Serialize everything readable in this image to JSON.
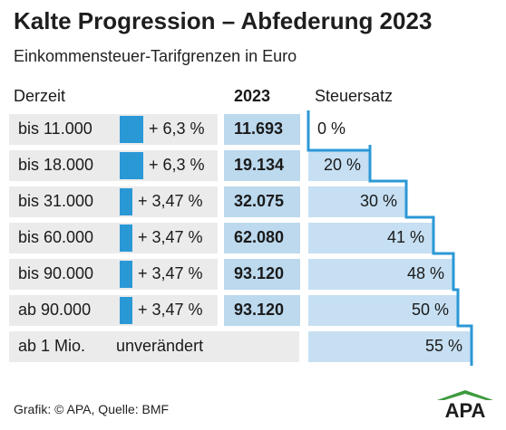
{
  "title": "Kalte Progression – Abfederung 2023",
  "subtitle": "Einkommensteuer-Tarifgrenzen in Euro",
  "headers": {
    "current": "Derzeit",
    "year": "2023",
    "rate": "Steuersatz"
  },
  "chart_data": {
    "type": "table",
    "title": "Kalte Progression – Abfederung 2023",
    "subtitle": "Einkommensteuer-Tarifgrenzen in Euro",
    "columns": [
      "Derzeit",
      "2023",
      "Steuersatz"
    ],
    "rows": [
      {
        "current": "bis 11.000",
        "change": "+ 6,3 %",
        "change_value": 6.3,
        "new_limit": "11.693",
        "rate": "0 %",
        "rate_value": 0
      },
      {
        "current": "bis 18.000",
        "change": "+ 6,3 %",
        "change_value": 6.3,
        "new_limit": "19.134",
        "rate": "20 %",
        "rate_value": 20
      },
      {
        "current": "bis 31.000",
        "change": "+ 3,47 %",
        "change_value": 3.47,
        "new_limit": "32.075",
        "rate": "30 %",
        "rate_value": 30
      },
      {
        "current": "bis 60.000",
        "change": "+ 3,47 %",
        "change_value": 3.47,
        "new_limit": "62.080",
        "rate": "41 %",
        "rate_value": 41
      },
      {
        "current": "bis 90.000",
        "change": "+ 3,47 %",
        "change_value": 3.47,
        "new_limit": "93.120",
        "rate": "48 %",
        "rate_value": 48
      },
      {
        "current": "ab 90.000",
        "change": "+ 3,47 %",
        "change_value": 3.47,
        "new_limit": "93.120",
        "rate": "50 %",
        "rate_value": 50
      },
      {
        "current": "ab 1 Mio.",
        "change": "unverändert",
        "change_value": null,
        "new_limit": "",
        "rate": "55 %",
        "rate_value": 55
      }
    ]
  },
  "colors": {
    "bar": "#2b98d6",
    "row_bg": "#ebebeb",
    "year_bg": "#bcd9ee",
    "rate_fill": "#c6dff2",
    "stair_line": "#2b98d6",
    "logo_green": "#3c9a3c",
    "logo_text": "#1e1e1e"
  },
  "footer": "Grafik: © APA, Quelle: BMF",
  "logo": {
    "text": "APA"
  }
}
